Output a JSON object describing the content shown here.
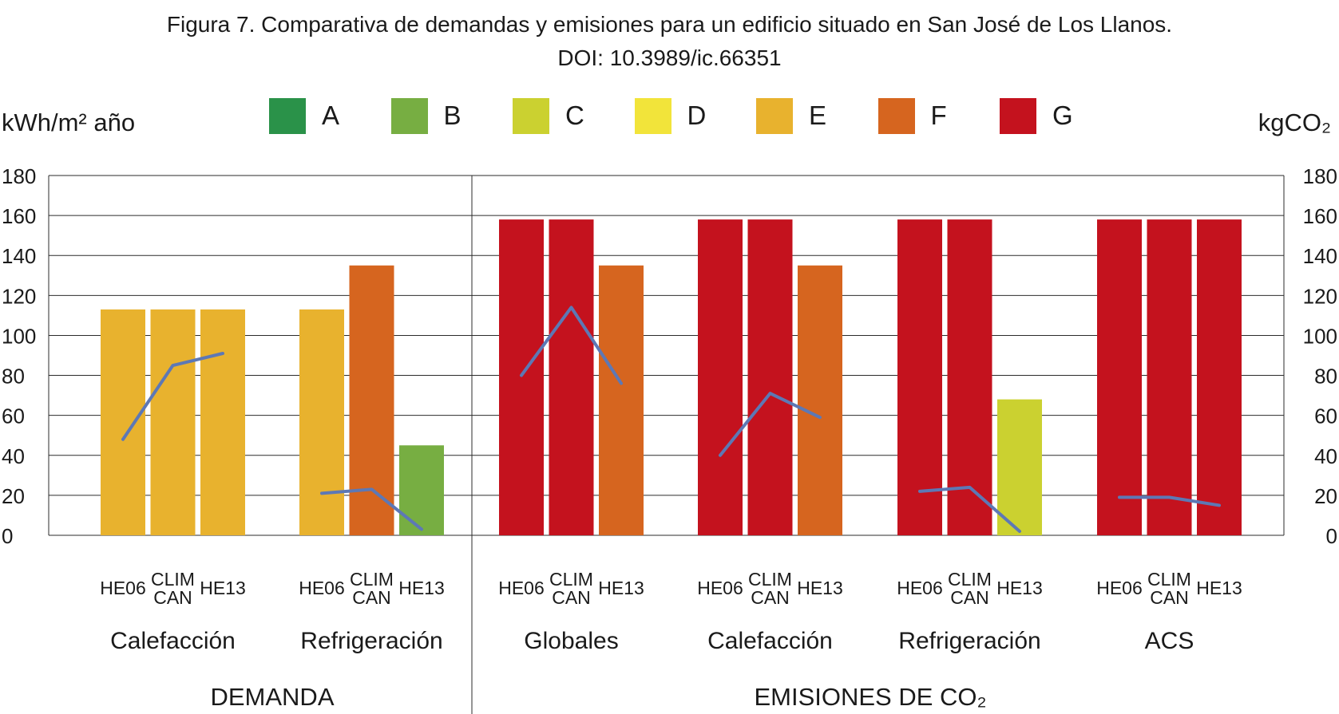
{
  "title": "Figura 7. Comparativa de demandas y emisiones para un edificio situado en San José de Los Llanos.",
  "subtitle": "DOI: 10.3989/ic.66351",
  "y_left_label": "kWh/m² año",
  "y_right_label": "kgCO₂",
  "legend": [
    {
      "label": "A",
      "color": "#2a9249"
    },
    {
      "label": "B",
      "color": "#77ae42"
    },
    {
      "label": "C",
      "color": "#cbd130"
    },
    {
      "label": "D",
      "color": "#f2e43a"
    },
    {
      "label": "E",
      "color": "#e8b22e"
    },
    {
      "label": "F",
      "color": "#d6651f"
    },
    {
      "label": "G",
      "color": "#c4121e"
    }
  ],
  "chart_data": {
    "type": "bar",
    "ylim": [
      0,
      180
    ],
    "yticks": [
      0,
      20,
      40,
      60,
      80,
      100,
      120,
      140,
      160,
      180
    ],
    "grid": true,
    "line_color": "#5d78b5",
    "sections": [
      {
        "label": "DEMANDA",
        "groups": [
          0,
          1
        ]
      },
      {
        "label": "EMISIONES DE CO₂",
        "groups": [
          2,
          3,
          4,
          5
        ]
      }
    ],
    "groups": [
      {
        "label": "Calefacción",
        "bars": [
          {
            "label": "HE06",
            "value": 113,
            "rating": "E"
          },
          {
            "label": "CLIM CAN",
            "value": 113,
            "rating": "E"
          },
          {
            "label": "HE13",
            "value": 113,
            "rating": "E"
          }
        ],
        "line": [
          48,
          85,
          91
        ]
      },
      {
        "label": "Refrigeración",
        "bars": [
          {
            "label": "HE06",
            "value": 113,
            "rating": "E"
          },
          {
            "label": "CLIM CAN",
            "value": 135,
            "rating": "F"
          },
          {
            "label": "HE13",
            "value": 45,
            "rating": "B"
          }
        ],
        "line": [
          21,
          23,
          3
        ]
      },
      {
        "label": "Globales",
        "bars": [
          {
            "label": "HE06",
            "value": 158,
            "rating": "G"
          },
          {
            "label": "CLIM CAN",
            "value": 158,
            "rating": "G"
          },
          {
            "label": "HE13",
            "value": 135,
            "rating": "F"
          }
        ],
        "line": [
          80,
          114,
          76
        ]
      },
      {
        "label": "Calefacción",
        "bars": [
          {
            "label": "HE06",
            "value": 158,
            "rating": "G"
          },
          {
            "label": "CLIM CAN",
            "value": 158,
            "rating": "G"
          },
          {
            "label": "HE13",
            "value": 135,
            "rating": "F"
          }
        ],
        "line": [
          40,
          71,
          59
        ]
      },
      {
        "label": "Refrigeración",
        "bars": [
          {
            "label": "HE06",
            "value": 158,
            "rating": "G"
          },
          {
            "label": "CLIM CAN",
            "value": 158,
            "rating": "G"
          },
          {
            "label": "HE13",
            "value": 68,
            "rating": "C"
          }
        ],
        "line": [
          22,
          24,
          2
        ]
      },
      {
        "label": "ACS",
        "bars": [
          {
            "label": "HE06",
            "value": 158,
            "rating": "G"
          },
          {
            "label": "CLIM CAN",
            "value": 158,
            "rating": "G"
          },
          {
            "label": "HE13",
            "value": 158,
            "rating": "G"
          }
        ],
        "line": [
          19,
          19,
          15
        ]
      }
    ]
  }
}
